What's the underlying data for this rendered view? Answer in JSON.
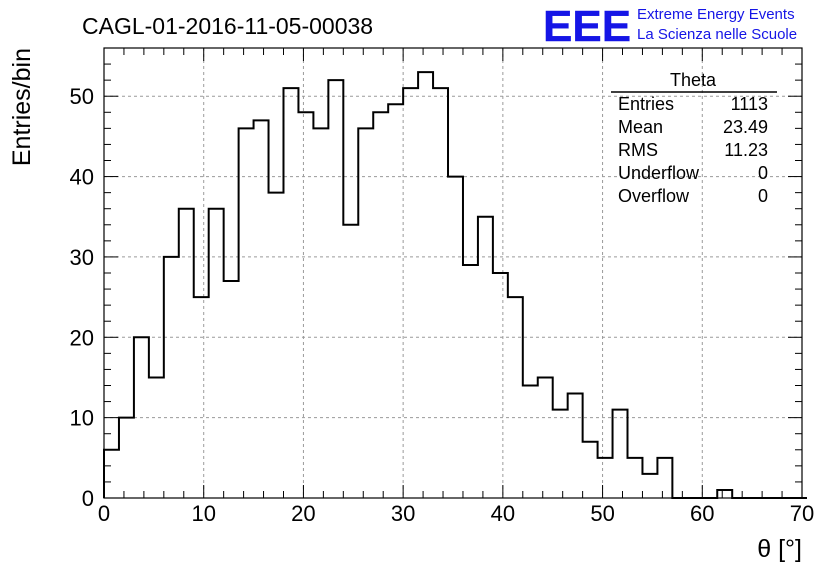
{
  "chart_data": {
    "type": "histogram",
    "title": "CAGL-01-2016-11-05-00038",
    "xlabel": "θ [°]",
    "ylabel": "Entries/bin",
    "xlim": [
      0,
      70
    ],
    "ylim": [
      0,
      56
    ],
    "bin_width": 1.5,
    "x_ticks": [
      0,
      10,
      20,
      30,
      40,
      50,
      60,
      70
    ],
    "y_ticks": [
      0,
      10,
      20,
      30,
      40,
      50
    ],
    "grid": true,
    "values": [
      6,
      10,
      20,
      15,
      30,
      36,
      25,
      36,
      27,
      46,
      47,
      38,
      51,
      48,
      46,
      52,
      34,
      46,
      48,
      49,
      51,
      53,
      51,
      40,
      29,
      35,
      28,
      25,
      14,
      15,
      11,
      13,
      7,
      5,
      11,
      5,
      3,
      5,
      0,
      0,
      0,
      1,
      0,
      0,
      0,
      0,
      0
    ],
    "stats": {
      "name": "Theta",
      "rows": [
        {
          "label": "Entries",
          "value": "1113"
        },
        {
          "label": "Mean",
          "value": "23.49"
        },
        {
          "label": "RMS",
          "value": "11.23"
        },
        {
          "label": "Underflow",
          "value": "0"
        },
        {
          "label": "Overflow",
          "value": "0"
        }
      ]
    }
  },
  "logo": {
    "text": "EEE",
    "line1": "Extreme Energy Events",
    "line2": "La Scienza nelle Scuole",
    "color": "#1515e6"
  }
}
